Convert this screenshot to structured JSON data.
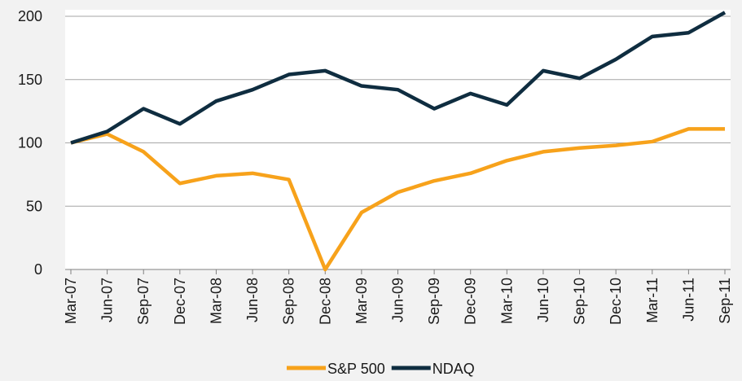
{
  "chart_data": {
    "type": "line",
    "categories": [
      "Mar-07",
      "Jun-07",
      "Sep-07",
      "Dec-07",
      "Mar-08",
      "Jun-08",
      "Sep-08",
      "Dec-08",
      "Mar-09",
      "Jun-09",
      "Sep-09",
      "Dec-09",
      "Mar-10",
      "Jun-10",
      "Sep-10",
      "Dec-10",
      "Mar-11",
      "Jun-11",
      "Sep-11"
    ],
    "series": [
      {
        "name": "S&P 500",
        "color": "#f7a21b",
        "values": [
          100,
          107,
          93,
          68,
          74,
          76,
          71,
          0,
          45,
          61,
          70,
          76,
          86,
          93,
          96,
          98,
          101,
          111,
          111
        ]
      },
      {
        "name": "NDAQ",
        "color": "#0f2d40",
        "values": [
          100,
          109,
          127,
          115,
          133,
          142,
          154,
          157,
          145,
          142,
          127,
          139,
          130,
          157,
          151,
          166,
          184,
          187,
          203
        ]
      }
    ],
    "ylim": [
      0,
      200
    ],
    "yticks": [
      0,
      50,
      100,
      150,
      200
    ],
    "grid": true,
    "legend": "bottom"
  }
}
